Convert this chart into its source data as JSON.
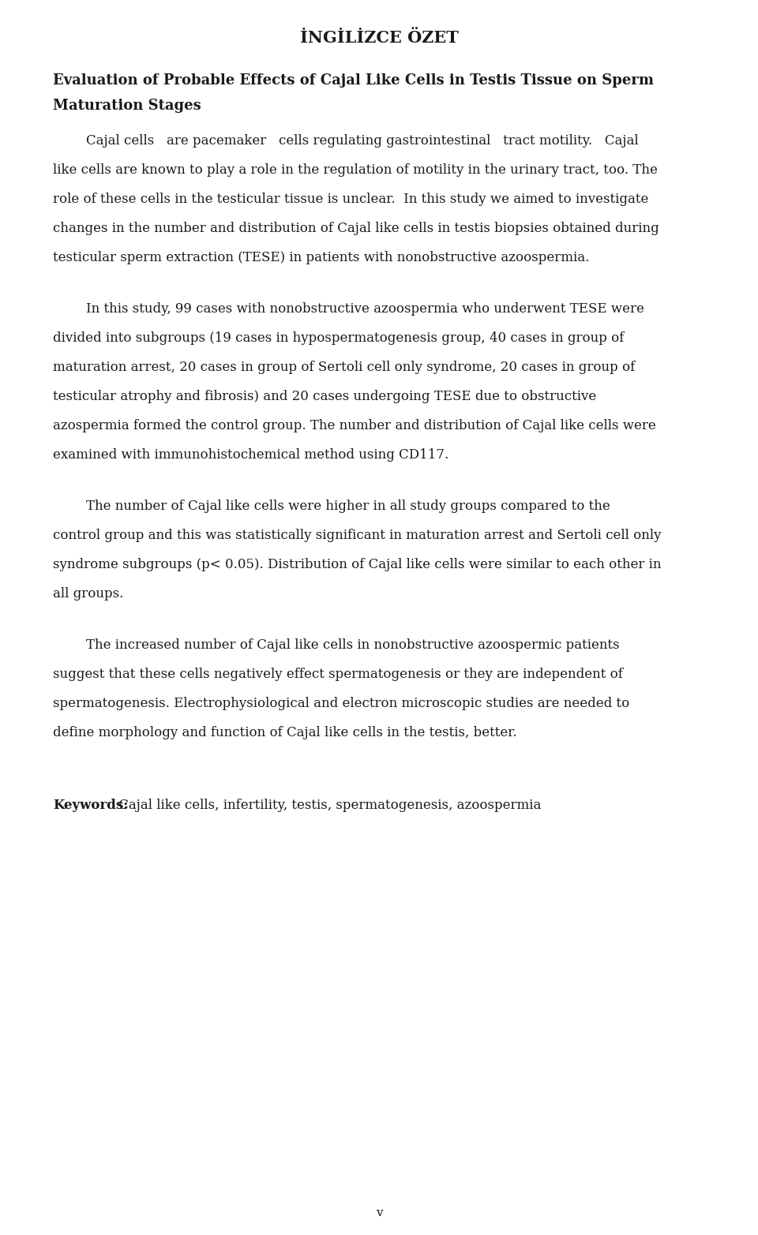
{
  "title": "İNGİLİZCE ÖZET",
  "subtitle_line1": "Evaluation of Probable Effects of Cajal Like Cells in Testis Tissue on Sperm",
  "subtitle_line2": "Maturation Stages",
  "para1_lines": [
    "        Cajal cells   are pacemaker   cells regulating gastrointestinal   tract motility.   Cajal",
    "like cells are known to play a role in the regulation of motility in the urinary tract, too. The",
    "role of these cells in the testicular tissue is unclear.  In this study we aimed to investigate",
    "changes in the number and distribution of Cajal like cells in testis biopsies obtained during",
    "testicular sperm extraction (TESE) in patients with nonobstructive azoospermia."
  ],
  "para2_lines": [
    "        In this study, 99 cases with nonobstructive azoospermia who underwent TESE were",
    "divided into subgroups (19 cases in hypospermatogenesis group, 40 cases in group of",
    "maturation arrest, 20 cases in group of Sertoli cell only syndrome, 20 cases in group of",
    "testicular atrophy and fibrosis) and 20 cases undergoing TESE due to obstructive",
    "azospermia formed the control group. The number and distribution of Cajal like cells were",
    "examined with immunohistochemical method using CD117."
  ],
  "para3_lines": [
    "        The number of Cajal like cells were higher in all study groups compared to the",
    "control group and this was statistically significant in maturation arrest and Sertoli cell only",
    "syndrome subgroups (p< 0.05). Distribution of Cajal like cells were similar to each other in",
    "all groups."
  ],
  "para4_lines": [
    "        The increased number of Cajal like cells in nonobstructive azoospermic patients",
    "suggest that these cells negatively effect spermatogenesis or they are independent of",
    "spermatogenesis. Electrophysiological and electron microscopic studies are needed to",
    "define morphology and function of Cajal like cells in the testis, better."
  ],
  "keywords_label": "Keywords:",
  "keywords_text": " Cajal like cells, infertility, testis, spermatogenesis, azoospermia",
  "page_number": "v",
  "bg_color": "#ffffff",
  "text_color": "#1a1a1a",
  "font_size_title": 15,
  "font_size_subtitle": 13,
  "font_size_body": 12,
  "font_size_page": 11
}
